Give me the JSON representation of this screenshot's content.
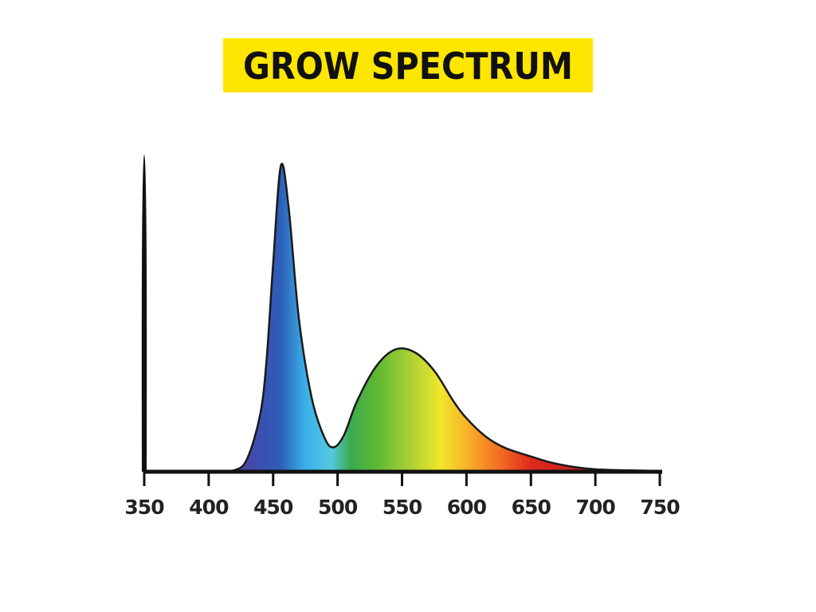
{
  "chart_data": {
    "type": "area",
    "title": "GROW SPECTRUM",
    "x": [
      350,
      400,
      420,
      430,
      440,
      445,
      450,
      456,
      462,
      470,
      480,
      490,
      497,
      505,
      515,
      530,
      545,
      560,
      575,
      590,
      600,
      615,
      630,
      650,
      670,
      700,
      750
    ],
    "values": [
      0,
      0,
      0.005,
      0.044,
      0.188,
      0.37,
      0.68,
      1,
      0.865,
      0.5,
      0.24,
      0.11,
      0.08,
      0.12,
      0.23,
      0.345,
      0.4,
      0.39,
      0.33,
      0.23,
      0.175,
      0.115,
      0.078,
      0.05,
      0.026,
      0.008,
      0.003
    ],
    "xlim": [
      350,
      750
    ],
    "xticks": [
      350,
      400,
      450,
      500,
      550,
      600,
      650,
      700,
      750
    ],
    "ylim": [
      0,
      1
    ],
    "grid": false
  }
}
